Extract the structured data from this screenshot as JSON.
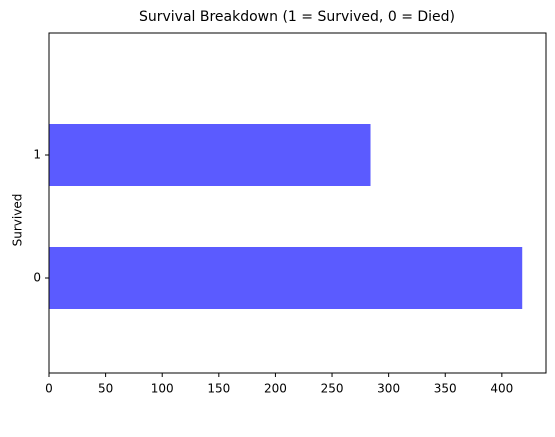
{
  "chart_data": {
    "type": "barh",
    "title": "Survival Breakdown (1 = Survived, 0 = Died)",
    "y_label": "Survived",
    "categories": [
      "0",
      "1"
    ],
    "values": [
      418,
      284
    ],
    "color": "#5b5bff",
    "xlim": [
      0,
      439
    ],
    "xticks": [
      0,
      50,
      100,
      150,
      200,
      250,
      300,
      350,
      400
    ],
    "grid": false
  }
}
